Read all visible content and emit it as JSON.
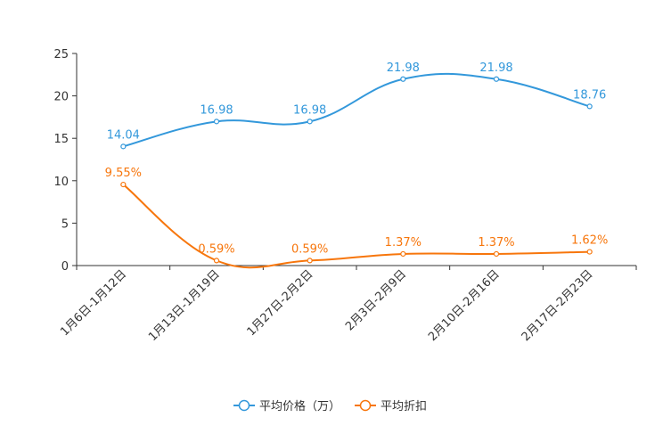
{
  "chart_data": {
    "type": "line",
    "title": "",
    "xlabel": "",
    "ylabel": "",
    "ylim": [
      0,
      25
    ],
    "yticks": [
      0,
      5,
      10,
      15,
      20,
      25
    ],
    "grid": false,
    "legend_position": "bottom-center",
    "categories": [
      "1月6日-1月12日",
      "1月13日-1月19日",
      "1月27日-2月2日",
      "2月3日-2月9日",
      "2月10日-2月16日",
      "2月17日-2月23日"
    ],
    "series": [
      {
        "name": "平均价格（万）",
        "color": "#3398DB",
        "values": [
          14.04,
          16.98,
          16.98,
          21.98,
          21.98,
          18.76
        ],
        "labels": [
          "14.04",
          "16.98",
          "16.98",
          "21.98",
          "21.98",
          "18.76"
        ]
      },
      {
        "name": "平均折扣",
        "color": "#F7760C",
        "values": [
          9.55,
          0.59,
          0.59,
          1.37,
          1.37,
          1.62
        ],
        "labels": [
          "9.55%",
          "0.59%",
          "0.59%",
          "1.37%",
          "1.37%",
          "1.62%"
        ]
      }
    ]
  }
}
